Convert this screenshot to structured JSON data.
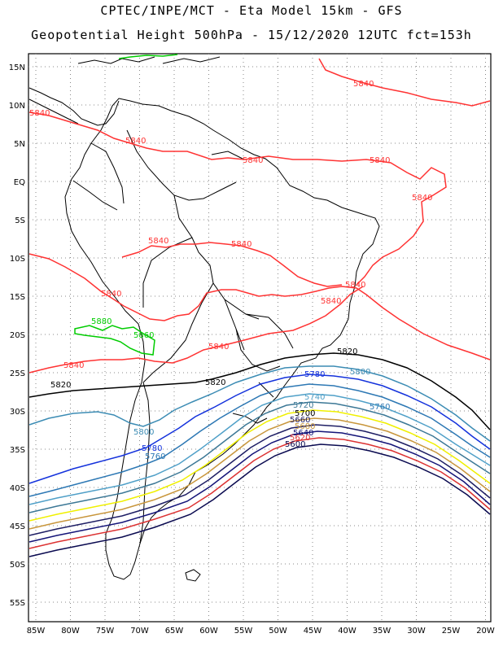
{
  "title": {
    "line1": "CPTEC/INPE/MCT  -   Eta Model 15km  -  GFS",
    "line2": "Geopotential Height 500hPa  -  15/12/2020 12UTC fct=153h"
  },
  "axes": {
    "lat_labels": [
      "15N",
      "10N",
      "5N",
      "EQ",
      "5S",
      "10S",
      "15S",
      "20S",
      "25S",
      "30S",
      "35S",
      "40S",
      "45S",
      "50S",
      "55S"
    ],
    "lon_labels": [
      "85W",
      "80W",
      "75W",
      "70W",
      "65W",
      "60W",
      "55W",
      "50W",
      "45W",
      "40W",
      "35W",
      "30W",
      "25W",
      "20W"
    ]
  },
  "colors": {
    "c5880": "#00cc00",
    "c5860": "#00cc00",
    "c5840": "#ff3333",
    "c5820": "#000000",
    "c5800": "#3c8cb4",
    "c5780": "#1432dc",
    "c5760": "#2d78b4",
    "c5740": "#50a0c8",
    "c5720": "#3c7896",
    "c5700": "#f0f000",
    "c5680": "#c8963c",
    "c5660": "#1e1e64",
    "c5640": "#141478",
    "c5620": "#dc3232",
    "c5600": "#0a0a50",
    "coast": "#000000",
    "grid": "#888888"
  },
  "contour_labels": {
    "l5840a": "5840",
    "l5840b": "5840",
    "l5840c": "5840",
    "l5840d": "5840",
    "l5840e": "5840",
    "l5840f": "5840",
    "l5840g": "5840",
    "l5840h": "5840",
    "l5840i": "5840",
    "l5840j": "5840",
    "l5840k": "5840",
    "l5840l": "5840",
    "l5840m": "5840",
    "l5880": "5880",
    "l5860": "5860",
    "l5820a": "5820",
    "l5820b": "5820",
    "l5820c": "5820",
    "l5800a": "5800",
    "l5800b": "5800",
    "l5780a": "5780",
    "l5780b": "5780",
    "l5760a": "5760",
    "l5760b": "5760",
    "l5740": "5740",
    "l5720": "5720",
    "l5700": "5700",
    "l5680": "5680",
    "l5660": "5660",
    "l5640": "5640",
    "l5620": "5620",
    "l5600": "5600"
  }
}
